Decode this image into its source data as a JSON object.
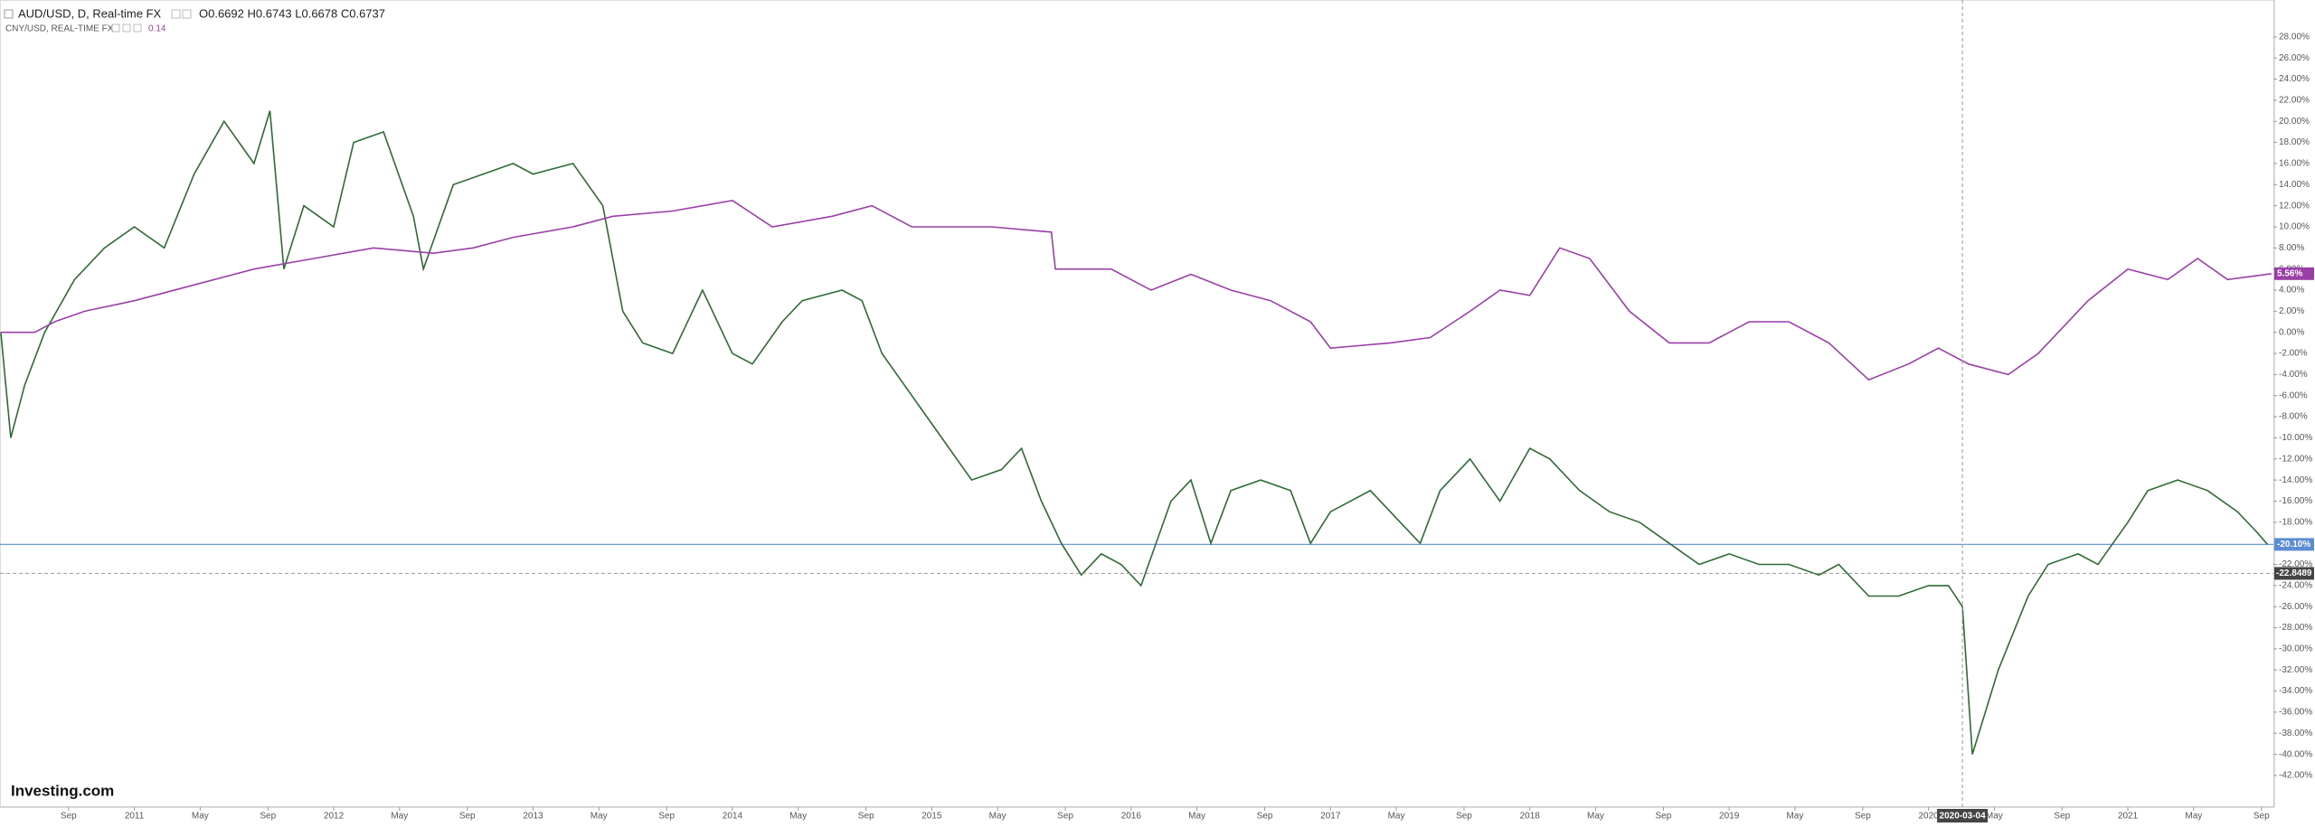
{
  "header": {
    "symbol": "AUD/USD, D, Real-time FX",
    "ohlc": "O0.6692  H0.6743  L0.6678  C0.6737",
    "compare_symbol": "CNY/USD, REAL-TIME FX",
    "compare_value": "0.14"
  },
  "logo": "Investing.com",
  "chart_data": {
    "type": "line",
    "xlim": [
      2010.326,
      2021.73
    ],
    "ylim": [
      -45,
      31.5
    ],
    "grid": false,
    "xticks": [
      {
        "value": 2010.67,
        "label": "Sep"
      },
      2011,
      {
        "value": 2011.33,
        "label": "May"
      },
      {
        "value": 2011.67,
        "label": "Sep"
      },
      2012,
      {
        "value": 2012.33,
        "label": "May"
      },
      {
        "value": 2012.67,
        "label": "Sep"
      },
      2013,
      {
        "value": 2013.33,
        "label": "May"
      },
      {
        "value": 2013.67,
        "label": "Sep"
      },
      2014,
      {
        "value": 2014.33,
        "label": "May"
      },
      {
        "value": 2014.67,
        "label": "Sep"
      },
      2015,
      {
        "value": 2015.33,
        "label": "May"
      },
      {
        "value": 2015.67,
        "label": "Sep"
      },
      2016,
      {
        "value": 2016.33,
        "label": "May"
      },
      {
        "value": 2016.67,
        "label": "Sep"
      },
      2017,
      {
        "value": 2017.33,
        "label": "May"
      },
      {
        "value": 2017.67,
        "label": "Sep"
      },
      2018,
      {
        "value": 2018.33,
        "label": "May"
      },
      {
        "value": 2018.67,
        "label": "Sep"
      },
      2019,
      {
        "value": 2019.33,
        "label": "May"
      },
      {
        "value": 2019.67,
        "label": "Sep"
      },
      2020,
      {
        "value": 2020.33,
        "label": "May"
      },
      {
        "value": 2020.67,
        "label": "Sep"
      },
      2021,
      {
        "value": 2021.33,
        "label": "May"
      },
      {
        "value": 2021.67,
        "label": "Sep"
      }
    ],
    "yticks": [
      {
        "value": 28,
        "label": "28.00%"
      },
      {
        "value": 26,
        "label": "26.00%"
      },
      {
        "value": 24,
        "label": "24.00%"
      },
      {
        "value": 22,
        "label": "22.00%"
      },
      {
        "value": 20,
        "label": "20.00%"
      },
      {
        "value": 18,
        "label": "18.00%"
      },
      {
        "value": 16,
        "label": "16.00%"
      },
      {
        "value": 14,
        "label": "14.00%"
      },
      {
        "value": 12,
        "label": "12.00%"
      },
      {
        "value": 10,
        "label": "10.00%"
      },
      {
        "value": 8,
        "label": "8.00%"
      },
      {
        "value": 6,
        "label": "6.00%"
      },
      {
        "value": 4,
        "label": "4.00%"
      },
      {
        "value": 2,
        "label": "2.00%"
      },
      {
        "value": 0,
        "label": "0.00%"
      },
      {
        "value": -2,
        "label": "-2.00%"
      },
      {
        "value": -4,
        "label": "-4.00%"
      },
      {
        "value": -6,
        "label": "-6.00%"
      },
      {
        "value": -8,
        "label": "-8.00%"
      },
      {
        "value": -10,
        "label": "-10.00%"
      },
      {
        "value": -12,
        "label": "-12.00%"
      },
      {
        "value": -14,
        "label": "-14.00%"
      },
      {
        "value": -16,
        "label": "-16.00%"
      },
      {
        "value": -18,
        "label": "-18.00%"
      },
      {
        "value": -22,
        "label": "-22.00%"
      },
      {
        "value": -24,
        "label": "-24.00%"
      },
      {
        "value": -26,
        "label": "-26.00%"
      },
      {
        "value": -28,
        "label": "-28.00%"
      },
      {
        "value": -30,
        "label": "-30.00%"
      },
      {
        "value": -32,
        "label": "-32.00%"
      },
      {
        "value": -34,
        "label": "-34.00%"
      },
      {
        "value": -36,
        "label": "-36.00%"
      },
      {
        "value": -38,
        "label": "-38.00%"
      },
      {
        "value": -40,
        "label": "-40.00%"
      },
      {
        "value": -42,
        "label": "-42.00%"
      }
    ],
    "series": [
      {
        "color": "#2e6b34",
        "last_line_color": "#5b8dd6",
        "x": [
          2010.33,
          2010.38,
          2010.45,
          2010.55,
          2010.7,
          2010.85,
          2011.0,
          2011.15,
          2011.3,
          2011.45,
          2011.6,
          2011.68,
          2011.75,
          2011.85,
          2012.0,
          2012.1,
          2012.25,
          2012.4,
          2012.45,
          2012.6,
          2012.75,
          2012.9,
          2013.0,
          2013.2,
          2013.35,
          2013.45,
          2013.55,
          2013.7,
          2013.85,
          2014.0,
          2014.1,
          2014.25,
          2014.35,
          2014.55,
          2014.65,
          2014.75,
          2014.9,
          2015.05,
          2015.2,
          2015.35,
          2015.45,
          2015.55,
          2015.65,
          2015.75,
          2015.85,
          2015.95,
          2016.05,
          2016.2,
          2016.3,
          2016.4,
          2016.5,
          2016.65,
          2016.8,
          2016.9,
          2017.0,
          2017.2,
          2017.3,
          2017.45,
          2017.55,
          2017.7,
          2017.85,
          2018.0,
          2018.1,
          2018.25,
          2018.4,
          2018.55,
          2018.7,
          2018.85,
          2019.0,
          2019.15,
          2019.3,
          2019.45,
          2019.55,
          2019.7,
          2019.85,
          2020.0,
          2020.1,
          2020.17,
          2020.22,
          2020.35,
          2020.5,
          2020.6,
          2020.75,
          2020.85,
          2021.0,
          2021.1,
          2021.25,
          2021.4,
          2021.55,
          2021.65,
          2021.7
        ],
        "values": [
          0,
          -10,
          -5,
          0,
          5,
          8,
          10,
          8,
          15,
          20,
          16,
          21,
          6,
          12,
          10,
          18,
          19,
          11,
          6,
          14,
          15,
          16,
          15,
          16,
          12,
          2,
          -1,
          -2,
          4,
          -2,
          -3,
          1,
          3,
          4,
          3,
          -2,
          -6,
          -10,
          -14,
          -13,
          -11,
          -16,
          -20,
          -23,
          -21,
          -22,
          -24,
          -16,
          -14,
          -20,
          -15,
          -14,
          -15,
          -20,
          -17,
          -15,
          -17,
          -20,
          -15,
          -12,
          -16,
          -11,
          -12,
          -15,
          -17,
          -18,
          -20,
          -22,
          -21,
          -22,
          -22,
          -23,
          -22,
          -25,
          -25,
          -24,
          -24,
          -26,
          -40,
          -32,
          -25,
          -22,
          -21,
          -22,
          -18,
          -15,
          -14,
          -15,
          -17,
          -19,
          -20.1
        ],
        "last_value": -20.1,
        "last_label": "-20.10%"
      },
      {
        "color": "#9b3fa8",
        "x": [
          2010.33,
          2010.5,
          2010.6,
          2010.75,
          2011.0,
          2011.3,
          2011.6,
          2011.9,
          2012.2,
          2012.5,
          2012.7,
          2012.9,
          2013.2,
          2013.4,
          2013.7,
          2014.0,
          2014.2,
          2014.5,
          2014.7,
          2014.9,
          2015.1,
          2015.3,
          2015.6,
          2015.62,
          2015.9,
          2016.1,
          2016.3,
          2016.5,
          2016.7,
          2016.9,
          2017.0,
          2017.3,
          2017.5,
          2017.7,
          2017.85,
          2018.0,
          2018.15,
          2018.3,
          2018.5,
          2018.7,
          2018.9,
          2019.1,
          2019.3,
          2019.5,
          2019.7,
          2019.9,
          2020.05,
          2020.2,
          2020.4,
          2020.55,
          2020.8,
          2021.0,
          2021.2,
          2021.35,
          2021.5,
          2021.72
        ],
        "values": [
          0,
          0,
          1,
          2,
          3,
          4.5,
          6,
          7,
          8,
          7.5,
          8,
          9,
          10,
          11,
          11.5,
          12.5,
          10,
          11,
          12,
          10,
          10,
          10,
          9.5,
          6,
          6,
          4,
          5.5,
          4,
          3,
          1,
          -1.5,
          -1,
          -0.5,
          2,
          4,
          3.5,
          8,
          7,
          2,
          -1,
          -1,
          1,
          1,
          -1,
          -4.5,
          -3,
          -1.5,
          -3,
          -4,
          -2,
          3,
          6,
          5,
          7,
          5,
          5.56
        ],
        "last_value": 5.56,
        "last_label": "5.56%"
      }
    ],
    "crosshair": {
      "x": {
        "value": 2020.17,
        "label": "2020-03-04"
      },
      "y": -22.8489
    }
  }
}
